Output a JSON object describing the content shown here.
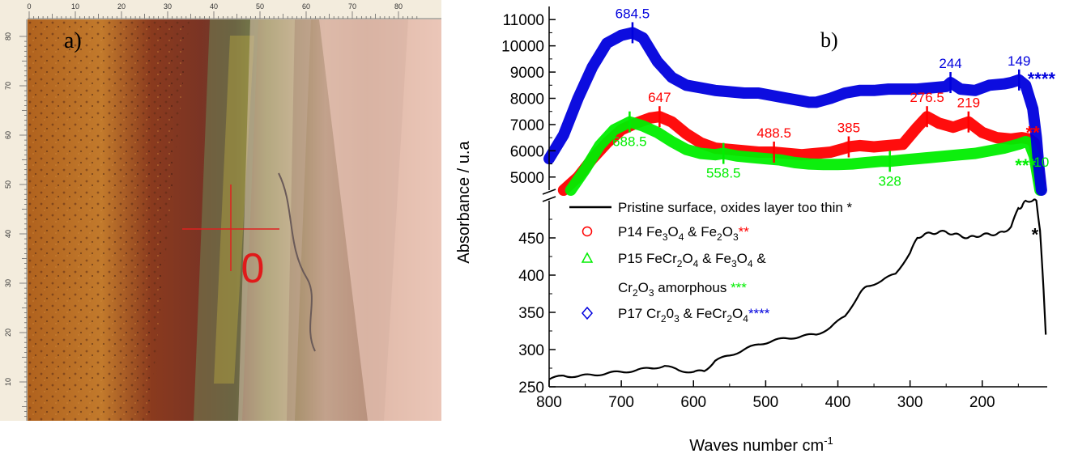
{
  "panel_a": {
    "label": "a)",
    "top_ruler_ticks": [
      "0",
      "10",
      "20",
      "30",
      "40",
      "50",
      "60",
      "70",
      "80"
    ],
    "left_ruler_ticks": [
      "80",
      "70",
      "60",
      "50",
      "40",
      "30",
      "20",
      "10"
    ],
    "marker_label": "0"
  },
  "chart_data": {
    "type": "line",
    "panel_label": "b)",
    "xlabel": "Waves number cm",
    "xlabel_superscript": "-1",
    "ylabel": "Absorbance / u.a",
    "x_reversed": true,
    "xlim": [
      800,
      110
    ],
    "x_ticks": [
      "800",
      "700",
      "600",
      "500",
      "400",
      "300",
      "200"
    ],
    "y_axis_break": true,
    "ylim_lower": [
      250,
      500
    ],
    "y_ticks_lower": [
      "250",
      "300",
      "350",
      "400",
      "450"
    ],
    "ylim_upper": [
      4500,
      11500
    ],
    "y_ticks_upper": [
      "5000",
      "6000",
      "7000",
      "8000",
      "9000",
      "10000",
      "11000"
    ],
    "colors": {
      "black": "#000000",
      "red": "#ff0000",
      "green": "#00ee00",
      "blue": "#0000dd"
    },
    "legend": [
      {
        "line1": "Pristine surface, oxides layer too thin ",
        "star": "*",
        "marker": "line",
        "color": "#000000"
      },
      {
        "prefix": "P14 Fe",
        "sub1": "3",
        "mid1": "O",
        "sub2": "4",
        "mid2": " & Fe",
        "sub3": "2",
        "mid3": "O",
        "sub4": "3",
        "star": "**",
        "marker": "circle",
        "color": "#ff0000"
      },
      {
        "prefix": "P15 FeCr",
        "sub1": "2",
        "mid1": "O",
        "sub2": "4",
        "mid2": " & Fe",
        "sub3": "3",
        "mid3": "O",
        "sub4": "4",
        "tail": " &",
        "line2_prefix": "Cr",
        "line2_sub1": "2",
        "line2_mid": "O",
        "line2_sub2": "3",
        "line2_tail": " amorphous ",
        "star": "***",
        "marker": "triangle",
        "color": "#00ee00"
      },
      {
        "prefix": "P17 Cr",
        "sub1": "2",
        "mid1": "0",
        "sub2": "3",
        "mid2": " & FeCr",
        "sub3": "2",
        "mid3": "O",
        "sub4": "4",
        "star": "****",
        "marker": "diamond",
        "color": "#0000dd"
      }
    ],
    "series": [
      {
        "name": "Pristine surface, oxides layer too thin *",
        "color": "#000000",
        "axis": "lower",
        "x": [
          800,
          780,
          760,
          740,
          720,
          700,
          680,
          660,
          640,
          620,
          600,
          585,
          570,
          550,
          530,
          510,
          490,
          470,
          450,
          430,
          410,
          390,
          370,
          360,
          340,
          320,
          300,
          290,
          280,
          270,
          260,
          250,
          240,
          230,
          220,
          210,
          200,
          190,
          180,
          170,
          160,
          150,
          145,
          140,
          130,
          125,
          120,
          115,
          112
        ],
        "y": [
          260,
          265,
          264,
          266,
          268,
          270,
          272,
          275,
          278,
          272,
          270,
          271,
          285,
          292,
          300,
          307,
          312,
          315,
          318,
          320,
          330,
          345,
          375,
          385,
          392,
          402,
          430,
          450,
          455,
          456,
          458,
          458,
          455,
          453,
          450,
          452,
          454,
          455,
          455,
          458,
          465,
          490,
          492,
          500,
          505,
          500,
          460,
          380,
          320
        ]
      },
      {
        "name": "P14",
        "color": "#ff0000",
        "axis": "upper",
        "x": [
          780,
          760,
          740,
          720,
          700,
          680,
          660,
          647,
          630,
          610,
          590,
          570,
          550,
          530,
          510,
          490,
          470,
          450,
          430,
          410,
          390,
          385,
          370,
          350,
          330,
          310,
          290,
          276.5,
          260,
          240,
          219,
          200,
          180,
          160,
          145,
          135,
          128,
          120
        ],
        "y": [
          4500,
          5000,
          5700,
          6300,
          6800,
          7050,
          7250,
          7300,
          7100,
          6650,
          6300,
          6100,
          6050,
          6000,
          5950,
          5950,
          5900,
          5850,
          5900,
          5950,
          6100,
          6150,
          6200,
          6150,
          6200,
          6250,
          6900,
          7300,
          7050,
          6900,
          7100,
          6700,
          6500,
          6450,
          6500,
          6450,
          6300,
          4800
        ]
      },
      {
        "name": "P15",
        "color": "#00ee00",
        "axis": "upper",
        "x": [
          770,
          750,
          730,
          710,
          688.5,
          670,
          650,
          630,
          610,
          590,
          570,
          558.5,
          540,
          520,
          500,
          480,
          460,
          440,
          420,
          400,
          380,
          360,
          340,
          328,
          310,
          290,
          270,
          250,
          230,
          210,
          190,
          170,
          150,
          140,
          135,
          128,
          120
        ],
        "y": [
          4500,
          5300,
          6200,
          6800,
          7100,
          6950,
          6700,
          6350,
          6050,
          5900,
          5850,
          5900,
          5800,
          5750,
          5700,
          5650,
          5550,
          5500,
          5480,
          5480,
          5500,
          5550,
          5600,
          5600,
          5650,
          5700,
          5750,
          5800,
          5850,
          5900,
          6000,
          6100,
          6250,
          6350,
          6300,
          5800,
          4500
        ]
      },
      {
        "name": "P17",
        "color": "#0000dd",
        "axis": "upper",
        "x": [
          800,
          780,
          760,
          740,
          720,
          700,
          684.5,
          670,
          650,
          630,
          610,
          590,
          570,
          550,
          530,
          510,
          490,
          470,
          450,
          440,
          430,
          410,
          390,
          370,
          350,
          330,
          310,
          290,
          270,
          250,
          244,
          230,
          210,
          190,
          170,
          160,
          149,
          140,
          130,
          125,
          122,
          118
        ],
        "y": [
          5700,
          6600,
          8000,
          9200,
          10100,
          10400,
          10500,
          10300,
          9400,
          8800,
          8500,
          8400,
          8300,
          8250,
          8200,
          8200,
          8100,
          8000,
          7900,
          7850,
          7850,
          8000,
          8200,
          8300,
          8300,
          8350,
          8350,
          8350,
          8400,
          8450,
          8600,
          8350,
          8300,
          8500,
          8550,
          8600,
          8700,
          8500,
          7600,
          6500,
          5500,
          4500
        ]
      }
    ],
    "peak_labels": [
      {
        "text": "684.5",
        "x": 684.5,
        "y": 10500,
        "color": "#0000dd",
        "pos": "above"
      },
      {
        "text": "244",
        "x": 244,
        "y": 8600,
        "color": "#0000dd",
        "pos": "above"
      },
      {
        "text": "149",
        "x": 149,
        "y": 8700,
        "color": "#0000dd",
        "pos": "above"
      },
      {
        "text": "647",
        "x": 647,
        "y": 7300,
        "color": "#ff0000",
        "pos": "above"
      },
      {
        "text": "488.5",
        "x": 488.5,
        "y": 5950,
        "color": "#ff0000",
        "pos": "above"
      },
      {
        "text": "385",
        "x": 385,
        "y": 6150,
        "color": "#ff0000",
        "pos": "above"
      },
      {
        "text": "276.5",
        "x": 276.5,
        "y": 7300,
        "color": "#ff0000",
        "pos": "above"
      },
      {
        "text": "219",
        "x": 219,
        "y": 7100,
        "color": "#ff0000",
        "pos": "above"
      },
      {
        "text": "688.5",
        "x": 688.5,
        "y": 7100,
        "color": "#00ee00",
        "pos": "below"
      },
      {
        "text": "558.5",
        "x": 558.5,
        "y": 5900,
        "color": "#00ee00",
        "pos": "below"
      },
      {
        "text": "328",
        "x": 328,
        "y": 5600,
        "color": "#00ee00",
        "pos": "below"
      },
      {
        "text": "10",
        "x": 118,
        "y": 5400,
        "color": "#00ee00",
        "pos": "plain"
      }
    ],
    "star_annotations": [
      {
        "text": "****",
        "x": 118,
        "y": 8750,
        "color": "#0000dd"
      },
      {
        "text": "**",
        "x": 130,
        "y": 6700,
        "color": "#ff0000"
      },
      {
        "text": "***",
        "x": 140,
        "y": 5450,
        "color": "#00ee00"
      },
      {
        "text": "*",
        "x": 127,
        "y": 455,
        "color": "#000000"
      }
    ]
  }
}
